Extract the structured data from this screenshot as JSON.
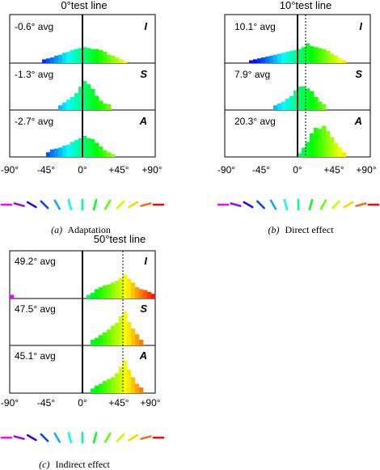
{
  "figure": {
    "panels": [
      {
        "id": "a",
        "title": "0°test line",
        "caption_letter": "(a)",
        "caption_text": "Adaptation",
        "test_deg": 0,
        "rows": [
          {
            "avg": "-0.6° avg",
            "tag": "I"
          },
          {
            "avg": "-1.3° avg",
            "tag": "S"
          },
          {
            "avg": "-2.7° avg",
            "tag": "A"
          }
        ]
      },
      {
        "id": "b",
        "title": "10°test line",
        "caption_letter": "(b)",
        "caption_text": "Direct effect",
        "test_deg": 10,
        "rows": [
          {
            "avg": "10.1° avg",
            "tag": "I"
          },
          {
            "avg": "7.9° avg",
            "tag": "S"
          },
          {
            "avg": "20.3° avg",
            "tag": "A"
          }
        ]
      },
      {
        "id": "c",
        "title": "50°test line",
        "caption_letter": "(c)",
        "caption_text": "Indirect effect",
        "test_deg": 50,
        "rows": [
          {
            "avg": "49.2° avg",
            "tag": "I"
          },
          {
            "avg": "47.5° avg",
            "tag": "S"
          },
          {
            "avg": "45.1° avg",
            "tag": "A"
          }
        ]
      }
    ],
    "x_tick_labels": [
      "-90°",
      "-45°",
      "0°",
      "+45°",
      "+90°"
    ]
  },
  "chart_data": [
    {
      "type": "bar",
      "title": "0°test line",
      "x_range_deg": [
        -90,
        90
      ],
      "bin_width_deg": 5,
      "x_ticks": [
        "-90°",
        "-45°",
        "0°",
        "+45°",
        "+90°"
      ],
      "reference_line_deg": 0,
      "series": [
        {
          "name": "I",
          "bins": [
            {
              "x": -50,
              "h": 0.08
            },
            {
              "x": -45,
              "h": 0.1
            },
            {
              "x": -40,
              "h": 0.12
            },
            {
              "x": -35,
              "h": 0.16
            },
            {
              "x": -30,
              "h": 0.18
            },
            {
              "x": -25,
              "h": 0.22
            },
            {
              "x": -20,
              "h": 0.24
            },
            {
              "x": -15,
              "h": 0.28
            },
            {
              "x": -10,
              "h": 0.3
            },
            {
              "x": -5,
              "h": 0.32
            },
            {
              "x": 0,
              "h": 0.34
            },
            {
              "x": 5,
              "h": 0.32
            },
            {
              "x": 10,
              "h": 0.3
            },
            {
              "x": 15,
              "h": 0.3
            },
            {
              "x": 20,
              "h": 0.28
            },
            {
              "x": 25,
              "h": 0.24
            },
            {
              "x": 30,
              "h": 0.18
            },
            {
              "x": 35,
              "h": 0.16
            },
            {
              "x": 40,
              "h": 0.12
            },
            {
              "x": 45,
              "h": 0.08
            },
            {
              "x": 50,
              "h": 0.04
            }
          ]
        },
        {
          "name": "S",
          "bins": [
            {
              "x": -30,
              "h": 0.1
            },
            {
              "x": -25,
              "h": 0.16
            },
            {
              "x": -20,
              "h": 0.22
            },
            {
              "x": -15,
              "h": 0.28
            },
            {
              "x": -10,
              "h": 0.36
            },
            {
              "x": -5,
              "h": 0.5
            },
            {
              "x": 0,
              "h": 0.62
            },
            {
              "x": 5,
              "h": 0.55
            },
            {
              "x": 10,
              "h": 0.45
            },
            {
              "x": 15,
              "h": 0.3
            },
            {
              "x": 20,
              "h": 0.2
            },
            {
              "x": 25,
              "h": 0.14
            },
            {
              "x": 30,
              "h": 0.12
            }
          ]
        },
        {
          "name": "A",
          "bins": [
            {
              "x": -45,
              "h": 0.1
            },
            {
              "x": -40,
              "h": 0.16
            },
            {
              "x": -35,
              "h": 0.18
            },
            {
              "x": -30,
              "h": 0.2
            },
            {
              "x": -25,
              "h": 0.24
            },
            {
              "x": -20,
              "h": 0.26
            },
            {
              "x": -15,
              "h": 0.32
            },
            {
              "x": -10,
              "h": 0.36
            },
            {
              "x": -5,
              "h": 0.4
            },
            {
              "x": 0,
              "h": 0.45
            },
            {
              "x": 5,
              "h": 0.4
            },
            {
              "x": 10,
              "h": 0.38
            },
            {
              "x": 15,
              "h": 0.3
            },
            {
              "x": 20,
              "h": 0.22
            },
            {
              "x": 25,
              "h": 0.14
            },
            {
              "x": 30,
              "h": 0.1
            },
            {
              "x": 35,
              "h": 0.06
            }
          ]
        }
      ]
    },
    {
      "type": "bar",
      "title": "10°test line",
      "x_range_deg": [
        -90,
        90
      ],
      "bin_width_deg": 5,
      "x_ticks": [
        "-90°",
        "-45°",
        "0°",
        "+45°",
        "+90°"
      ],
      "reference_line_deg": 10,
      "series": [
        {
          "name": "I",
          "bins": [
            {
              "x": -60,
              "h": 0.06
            },
            {
              "x": -55,
              "h": 0.08
            },
            {
              "x": -50,
              "h": 0.1
            },
            {
              "x": -45,
              "h": 0.12
            },
            {
              "x": -40,
              "h": 0.14
            },
            {
              "x": -35,
              "h": 0.16
            },
            {
              "x": -30,
              "h": 0.18
            },
            {
              "x": -25,
              "h": 0.2
            },
            {
              "x": -20,
              "h": 0.22
            },
            {
              "x": -15,
              "h": 0.24
            },
            {
              "x": -10,
              "h": 0.26
            },
            {
              "x": -5,
              "h": 0.28
            },
            {
              "x": 0,
              "h": 0.3
            },
            {
              "x": 5,
              "h": 0.34
            },
            {
              "x": 10,
              "h": 0.42
            },
            {
              "x": 15,
              "h": 0.36
            },
            {
              "x": 20,
              "h": 0.34
            },
            {
              "x": 25,
              "h": 0.32
            },
            {
              "x": 30,
              "h": 0.3
            },
            {
              "x": 35,
              "h": 0.26
            },
            {
              "x": 40,
              "h": 0.2
            },
            {
              "x": 45,
              "h": 0.16
            },
            {
              "x": 50,
              "h": 0.1
            },
            {
              "x": 55,
              "h": 0.06
            }
          ]
        },
        {
          "name": "S",
          "bins": [
            {
              "x": -30,
              "h": 0.1
            },
            {
              "x": -25,
              "h": 0.14
            },
            {
              "x": -20,
              "h": 0.18
            },
            {
              "x": -15,
              "h": 0.24
            },
            {
              "x": -10,
              "h": 0.3
            },
            {
              "x": -5,
              "h": 0.42
            },
            {
              "x": 0,
              "h": 0.5
            },
            {
              "x": 5,
              "h": 0.5
            },
            {
              "x": 10,
              "h": 0.46
            },
            {
              "x": 15,
              "h": 0.4
            },
            {
              "x": 20,
              "h": 0.28
            },
            {
              "x": 25,
              "h": 0.18
            },
            {
              "x": 30,
              "h": 0.12
            }
          ]
        },
        {
          "name": "A",
          "bins": [
            {
              "x": 0,
              "h": 0.08
            },
            {
              "x": 5,
              "h": 0.2
            },
            {
              "x": 10,
              "h": 0.32
            },
            {
              "x": 15,
              "h": 0.5
            },
            {
              "x": 20,
              "h": 0.62
            },
            {
              "x": 25,
              "h": 0.6
            },
            {
              "x": 30,
              "h": 0.66
            },
            {
              "x": 35,
              "h": 0.55
            },
            {
              "x": 40,
              "h": 0.42
            },
            {
              "x": 45,
              "h": 0.3
            },
            {
              "x": 50,
              "h": 0.2
            },
            {
              "x": 55,
              "h": 0.1
            }
          ]
        }
      ]
    },
    {
      "type": "bar",
      "title": "50°test line",
      "x_range_deg": [
        -90,
        90
      ],
      "bin_width_deg": 5,
      "x_ticks": [
        "-90°",
        "-45°",
        "0°",
        "+45°",
        "+90°"
      ],
      "reference_line_deg": 50,
      "series": [
        {
          "name": "I",
          "bins": [
            {
              "x": -90,
              "h": 0.08
            },
            {
              "x": 5,
              "h": 0.08
            },
            {
              "x": 10,
              "h": 0.12
            },
            {
              "x": 15,
              "h": 0.2
            },
            {
              "x": 20,
              "h": 0.24
            },
            {
              "x": 25,
              "h": 0.28
            },
            {
              "x": 30,
              "h": 0.3
            },
            {
              "x": 35,
              "h": 0.34
            },
            {
              "x": 40,
              "h": 0.38
            },
            {
              "x": 45,
              "h": 0.44
            },
            {
              "x": 50,
              "h": 0.5
            },
            {
              "x": 55,
              "h": 0.42
            },
            {
              "x": 60,
              "h": 0.34
            },
            {
              "x": 65,
              "h": 0.24
            },
            {
              "x": 70,
              "h": 0.2
            },
            {
              "x": 75,
              "h": 0.18
            },
            {
              "x": 80,
              "h": 0.14
            },
            {
              "x": 85,
              "h": 0.1
            }
          ]
        },
        {
          "name": "S",
          "bins": [
            {
              "x": 10,
              "h": 0.12
            },
            {
              "x": 15,
              "h": 0.16
            },
            {
              "x": 20,
              "h": 0.22
            },
            {
              "x": 25,
              "h": 0.28
            },
            {
              "x": 30,
              "h": 0.34
            },
            {
              "x": 35,
              "h": 0.42
            },
            {
              "x": 40,
              "h": 0.48
            },
            {
              "x": 45,
              "h": 0.62
            },
            {
              "x": 50,
              "h": 0.72
            },
            {
              "x": 55,
              "h": 0.5
            },
            {
              "x": 60,
              "h": 0.36
            },
            {
              "x": 65,
              "h": 0.24
            },
            {
              "x": 70,
              "h": 0.12
            }
          ]
        },
        {
          "name": "A",
          "bins": [
            {
              "x": 10,
              "h": 0.1
            },
            {
              "x": 15,
              "h": 0.16
            },
            {
              "x": 20,
              "h": 0.2
            },
            {
              "x": 25,
              "h": 0.26
            },
            {
              "x": 30,
              "h": 0.3
            },
            {
              "x": 35,
              "h": 0.34
            },
            {
              "x": 40,
              "h": 0.42
            },
            {
              "x": 45,
              "h": 0.56
            },
            {
              "x": 50,
              "h": 0.7
            },
            {
              "x": 55,
              "h": 0.5
            },
            {
              "x": 60,
              "h": 0.34
            },
            {
              "x": 65,
              "h": 0.2
            },
            {
              "x": 70,
              "h": 0.12
            }
          ]
        }
      ]
    }
  ]
}
